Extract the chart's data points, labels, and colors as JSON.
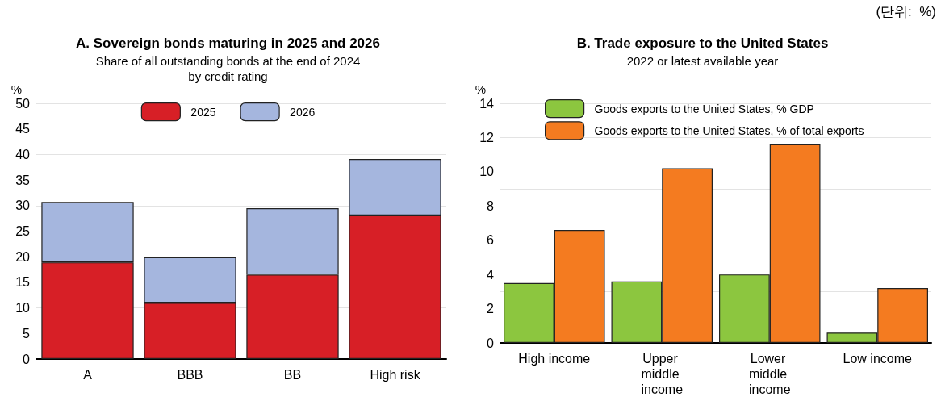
{
  "chart_data": [
    {
      "type": "bar",
      "title": "A. Sovereign bonds maturing in 2025 and 2026",
      "subtitle": "Share of all outstanding bonds at the end of 2024\nby credit rating",
      "ylabel": "%",
      "categories": [
        "A",
        "BBB",
        "BB",
        "High risk"
      ],
      "stacked": true,
      "series": [
        {
          "name": "2025",
          "color": "#d71f26",
          "values": [
            18.9,
            11.0,
            16.5,
            28.1
          ]
        },
        {
          "name": "2026",
          "color": "#a5b6de",
          "values": [
            11.8,
            8.9,
            13.0,
            11.0
          ]
        }
      ],
      "ylim": [
        0,
        50
      ],
      "yticks": [
        0,
        5,
        10,
        15,
        20,
        25,
        30,
        35,
        40,
        45,
        50
      ],
      "grid": "y",
      "legend": "top"
    },
    {
      "type": "bar",
      "title": "B. Trade exposure to the United States",
      "subtitle": "2022 or latest available year",
      "ylabel": "%",
      "categories": [
        "High income",
        "Upper middle income",
        "Lower middle income",
        "Low income"
      ],
      "series": [
        {
          "name": "Goods exports to the United States, % GDP",
          "color": "#8cc63f",
          "values": [
            3.5,
            3.6,
            4.0,
            0.6
          ]
        },
        {
          "name": "Goods exports to the United States, % of total exports",
          "color": "#f47b20",
          "values": [
            6.6,
            10.2,
            11.6,
            3.2
          ]
        }
      ],
      "ylim": [
        0,
        14
      ],
      "yticks": [
        0,
        2,
        4,
        6,
        8,
        10,
        12,
        14
      ],
      "grid": "y",
      "legend": "top left",
      "annotations": [
        "(단위:  %)"
      ]
    }
  ]
}
